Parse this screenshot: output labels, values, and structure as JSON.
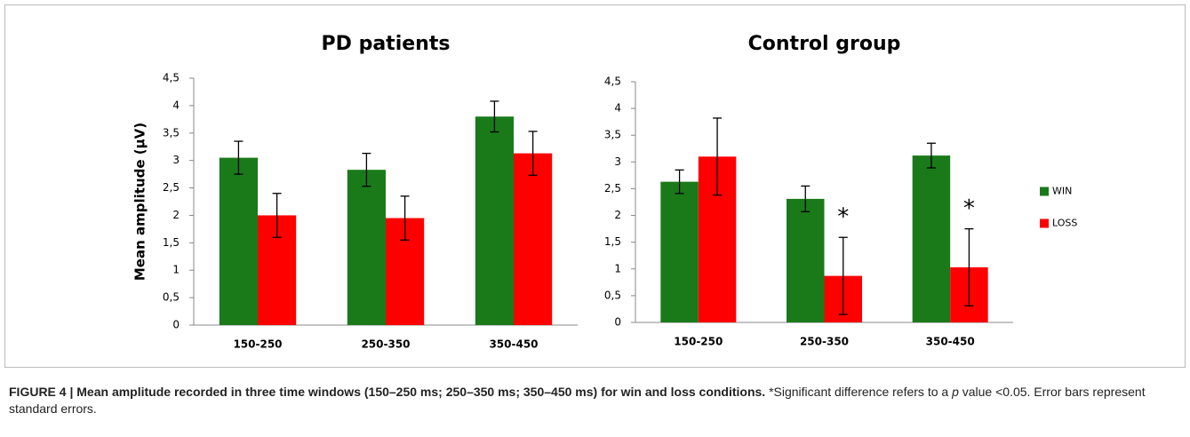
{
  "chart_data": [
    {
      "type": "bar",
      "title": "PD patients",
      "y_label": "Mean amplitude (µV)",
      "categories": [
        "150-250",
        "250-350",
        "350-450"
      ],
      "series": [
        {
          "color": "#1a7a1a",
          "values": [
            3.05,
            2.83,
            3.8
          ],
          "errors": [
            0.3,
            0.3,
            0.28
          ]
        },
        {
          "color": "#ff0000",
          "values": [
            2.0,
            1.95,
            3.13
          ],
          "errors": [
            0.4,
            0.4,
            0.4
          ]
        }
      ],
      "ylim": [
        0,
        4.5
      ],
      "yticks": [
        0,
        {
          "value": 0.5,
          "label": "0,5"
        },
        1,
        {
          "value": 1.5,
          "label": "1,5"
        },
        2,
        {
          "value": 2.5,
          "label": "2,5"
        },
        3,
        {
          "value": 3.5,
          "label": "3,5"
        },
        4,
        {
          "value": 4.5,
          "label": "4,5"
        }
      ],
      "legend": false
    },
    {
      "type": "bar",
      "title": "Control group",
      "categories": [
        "150-250",
        "250-350",
        "350-450"
      ],
      "series": [
        {
          "name": "WIN",
          "color": "#1a7a1a",
          "values": [
            2.63,
            2.31,
            3.12
          ],
          "errors": [
            0.22,
            0.24,
            0.23
          ]
        },
        {
          "name": "LOSS",
          "color": "#ff0000",
          "values": [
            3.1,
            0.87,
            1.03
          ],
          "errors": [
            0.72,
            0.72,
            0.72
          ]
        }
      ],
      "ylim": [
        0,
        4.5
      ],
      "yticks": [
        0,
        {
          "value": 0.5,
          "label": "0,5"
        },
        1,
        {
          "value": 1.5,
          "label": "1,5"
        },
        2,
        {
          "value": 2.5,
          "label": "2,5"
        },
        3,
        {
          "value": 3.5,
          "label": "3,5"
        },
        4,
        {
          "value": 4.5,
          "label": "4,5"
        }
      ],
      "annotations": [
        {
          "text": "*",
          "category": "250-350"
        },
        {
          "text": "*",
          "category": "350-450"
        }
      ],
      "legend": "right"
    }
  ],
  "caption": {
    "bold": "FIGURE 4 | Mean amplitude recorded in three time windows (150–250 ms; 250–350 ms; 350–450 ms) for win and loss conditions.",
    "text_before": " *Significant difference refers to a ",
    "italic": "p",
    "text_after": " value <0.05. Error bars represent standard errors."
  }
}
